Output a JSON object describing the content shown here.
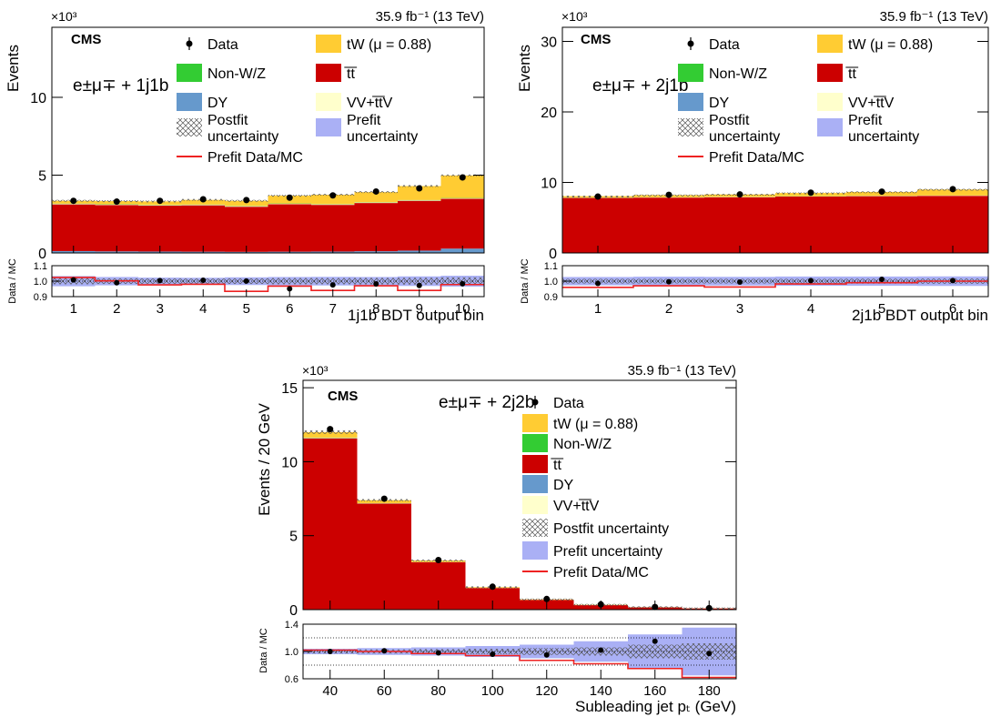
{
  "chart_data": [
    {
      "type": "bar",
      "stacked": true,
      "experiment": "CMS",
      "lumi_label": "35.9 fb⁻¹ (13 TeV)",
      "region_label": "e±μ∓ + 1j1b",
      "ylabel": "Events",
      "y_multiplier": "×10³",
      "xlabel": "1j1b BDT output bin",
      "ratio_ylabel": "Data / MC",
      "categories": [
        "1",
        "2",
        "3",
        "4",
        "5",
        "6",
        "7",
        "8",
        "9",
        "10"
      ],
      "ylim": [
        0,
        14.5
      ],
      "yticks": [
        "0",
        "5",
        "10"
      ],
      "series": [
        {
          "name": "DY",
          "color": "#6699cc",
          "values": [
            0.12,
            0.1,
            0.09,
            0.08,
            0.07,
            0.08,
            0.09,
            0.11,
            0.15,
            0.28
          ]
        },
        {
          "name": "t̅t̅",
          "color": "#cc0000",
          "values": [
            3.0,
            2.98,
            2.95,
            2.98,
            2.9,
            3.05,
            3.0,
            3.1,
            3.2,
            3.2
          ]
        },
        {
          "name": "VV+t̅t̅V",
          "color": "#ffffcc",
          "values": [
            0.03,
            0.03,
            0.03,
            0.03,
            0.03,
            0.03,
            0.03,
            0.03,
            0.03,
            0.03
          ]
        },
        {
          "name": "Non-W/Z",
          "color": "#33cc33",
          "values": [
            0.02,
            0.02,
            0.02,
            0.02,
            0.02,
            0.02,
            0.02,
            0.02,
            0.02,
            0.02
          ]
        },
        {
          "name": "tW (μ = 0.88)",
          "color": "#ffcc33",
          "values": [
            0.18,
            0.2,
            0.22,
            0.3,
            0.33,
            0.5,
            0.6,
            0.65,
            0.9,
            1.45
          ]
        }
      ],
      "data_points": [
        3.35,
        3.3,
        3.35,
        3.45,
        3.4,
        3.55,
        3.7,
        3.95,
        4.15,
        4.85
      ],
      "ratio_ylim": [
        0.9,
        1.1
      ],
      "ratio_yticks": [
        "0.9",
        "1.0",
        "1.1"
      ],
      "ratio_points": [
        1.008,
        0.99,
        1.004,
        1.006,
        1.001,
        0.951,
        0.976,
        0.982,
        0.972,
        0.983
      ],
      "prefit_ratio": [
        1.024,
        1.002,
        0.976,
        0.98,
        0.934,
        0.968,
        0.94,
        0.97,
        0.94,
        0.978
      ],
      "prefit_unc": [
        0.033,
        0.027,
        0.023,
        0.022,
        0.025,
        0.027,
        0.028,
        0.027,
        0.031,
        0.035
      ],
      "postfit_unc": [
        0.02,
        0.018,
        0.017,
        0.017,
        0.018,
        0.02,
        0.02,
        0.021,
        0.022,
        0.025
      ],
      "legend": {
        "data": "Data",
        "tw": "tW (μ = 0.88)",
        "nonwz": "Non-W/Z",
        "ttbar": "t̅t̅",
        "dy": "DY",
        "vv": "VV+t̅t̅V",
        "postfit_1": "Postfit",
        "postfit_2": "uncertainty",
        "prefit_1": "Prefit",
        "prefit_2": "uncertainty",
        "prefit_ratio": "Prefit Data/MC"
      }
    },
    {
      "type": "bar",
      "stacked": true,
      "experiment": "CMS",
      "lumi_label": "35.9 fb⁻¹ (13 TeV)",
      "region_label": "e±μ∓ + 2j1b",
      "ylabel": "Events",
      "y_multiplier": "×10³",
      "xlabel": "2j1b BDT output bin",
      "ratio_ylabel": "Data / MC",
      "categories": [
        "1",
        "2",
        "3",
        "4",
        "5",
        "6"
      ],
      "ylim": [
        0,
        32
      ],
      "yticks": [
        "0",
        "10",
        "20",
        "30"
      ],
      "series": [
        {
          "name": "DY",
          "color": "#6699cc",
          "values": [
            0.05,
            0.05,
            0.05,
            0.05,
            0.05,
            0.05
          ]
        },
        {
          "name": "t̅t̅",
          "color": "#cc0000",
          "values": [
            7.75,
            7.8,
            7.85,
            7.95,
            8.0,
            8.05
          ]
        },
        {
          "name": "VV+t̅t̅V",
          "color": "#ffffcc",
          "values": [
            0.03,
            0.03,
            0.03,
            0.03,
            0.03,
            0.03
          ]
        },
        {
          "name": "Non-W/Z",
          "color": "#33cc33",
          "values": [
            0.02,
            0.02,
            0.02,
            0.02,
            0.02,
            0.02
          ]
        },
        {
          "name": "tW (μ = 0.88)",
          "color": "#ffcc33",
          "values": [
            0.2,
            0.3,
            0.35,
            0.45,
            0.55,
            0.85
          ]
        }
      ],
      "data_points": [
        8.0,
        8.25,
        8.3,
        8.55,
        8.7,
        9.05
      ],
      "ratio_ylim": [
        0.9,
        1.1
      ],
      "ratio_yticks": [
        "0.9",
        "1.0",
        "1.1"
      ],
      "ratio_points": [
        0.985,
        0.996,
        0.994,
        1.004,
        1.012,
        1.004
      ],
      "prefit_ratio": [
        0.96,
        0.97,
        0.962,
        0.982,
        0.99,
        1.0
      ],
      "prefit_unc": [
        0.027,
        0.029,
        0.028,
        0.03,
        0.03,
        0.031
      ],
      "postfit_unc": [
        0.015,
        0.015,
        0.015,
        0.015,
        0.016,
        0.017
      ],
      "legend": {
        "data": "Data",
        "tw": "tW (μ = 0.88)",
        "nonwz": "Non-W/Z",
        "ttbar": "t̅t̅",
        "dy": "DY",
        "vv": "VV+t̅t̅V",
        "postfit_1": "Postfit",
        "postfit_2": "uncertainty",
        "prefit_1": "Prefit",
        "prefit_2": "uncertainty",
        "prefit_ratio": "Prefit Data/MC"
      }
    },
    {
      "type": "bar",
      "stacked": true,
      "experiment": "CMS",
      "lumi_label": "35.9 fb⁻¹ (13 TeV)",
      "region_label": "e±μ∓ + 2j2b",
      "ylabel": "Events / 20 GeV",
      "y_multiplier": "×10³",
      "xlabel": "Subleading jet pₜ (GeV)",
      "ratio_ylabel": "Data / MC",
      "bin_edges": [
        30,
        50,
        70,
        90,
        110,
        130,
        150,
        170,
        190
      ],
      "xlim": [
        30,
        190
      ],
      "xticks": [
        "40",
        "60",
        "80",
        "100",
        "120",
        "140",
        "160",
        "180"
      ],
      "ylim": [
        0,
        15.5
      ],
      "yticks": [
        "0",
        "5",
        "10",
        "15"
      ],
      "series": [
        {
          "name": "DY",
          "color": "#6699cc",
          "values": [
            0.03,
            0.02,
            0.01,
            0.01,
            0.005,
            0.003,
            0.002,
            0.001
          ]
        },
        {
          "name": "t̅t̅",
          "color": "#cc0000",
          "values": [
            11.55,
            7.15,
            3.2,
            1.45,
            0.65,
            0.3,
            0.15,
            0.08
          ]
        },
        {
          "name": "VV+t̅t̅V",
          "color": "#ffffcc",
          "values": [
            0.03,
            0.02,
            0.01,
            0.005,
            0.003,
            0.002,
            0.001,
            0.001
          ]
        },
        {
          "name": "Non-W/Z",
          "color": "#33cc33",
          "values": [
            0.02,
            0.01,
            0.005,
            0.003,
            0.002,
            0.001,
            0.001,
            0.001
          ]
        },
        {
          "name": "tW (μ = 0.88)",
          "color": "#ffcc33",
          "values": [
            0.37,
            0.2,
            0.1,
            0.05,
            0.03,
            0.02,
            0.01,
            0.005
          ]
        }
      ],
      "data_points": [
        12.2,
        7.5,
        3.35,
        1.55,
        0.72,
        0.35,
        0.18,
        0.1
      ],
      "ratio_ylim": [
        0.6,
        1.4
      ],
      "ratio_yticks": [
        "0.6",
        "1.0",
        "1.4"
      ],
      "ratio_points": [
        1.0,
        1.01,
        0.98,
        0.96,
        0.95,
        1.02,
        1.15,
        0.97
      ],
      "prefit_ratio": [
        1.02,
        1.0,
        0.97,
        0.94,
        0.87,
        0.82,
        0.75,
        0.62
      ],
      "prefit_unc": [
        0.04,
        0.05,
        0.06,
        0.08,
        0.1,
        0.15,
        0.25,
        0.35
      ],
      "postfit_unc": [
        0.03,
        0.03,
        0.035,
        0.04,
        0.05,
        0.06,
        0.1,
        0.12
      ],
      "legend": {
        "data": "Data",
        "tw": "tW (μ = 0.88)",
        "nonwz": "Non-W/Z",
        "ttbar": "t̅t̅",
        "dy": "DY",
        "vv": "VV+t̅t̅V",
        "postfit": "Postfit uncertainty",
        "prefit": "Prefit uncertainty",
        "prefit_ratio": "Prefit Data/MC"
      }
    }
  ]
}
